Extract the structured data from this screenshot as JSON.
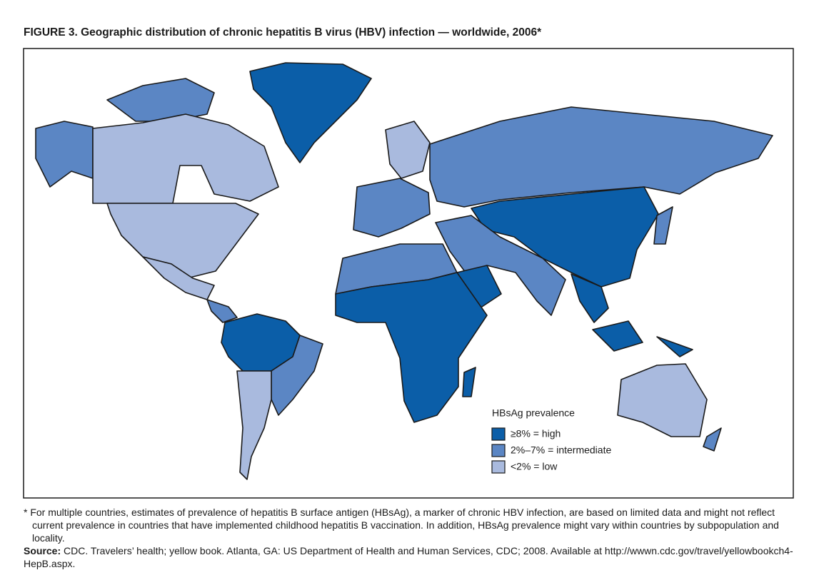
{
  "header": {
    "title": "FIGURE 3. Geographic distribution of chronic hepatitis B virus (HBV) infection — worldwide, 2006*"
  },
  "legend": {
    "title": "HBsAg prevalence",
    "items": [
      {
        "label": "≥8% = high",
        "color": "#0b5ea8"
      },
      {
        "label": "2%–7% = intermediate",
        "color": "#5b86c4"
      },
      {
        "label": "<2% = low",
        "color": "#a9bade"
      }
    ]
  },
  "footnote": "* For multiple countries, estimates of prevalence of hepatitis B surface antigen (HBsAg), a marker of chronic HBV infection, are based on limited data and might not reflect current prevalence in countries that have implemented childhood hepatitis B vaccination. In addition, HBsAg prevalence might vary within countries by subpopulation and locality.",
  "source": {
    "label": "Source:",
    "text": "CDC. Travelers’ health; yellow book. Atlanta, GA: US Department of Health and Human Services, CDC; 2008. Available at http://wwwn.cdc.gov/travel/yellowbookch4-HepB.aspx."
  }
}
